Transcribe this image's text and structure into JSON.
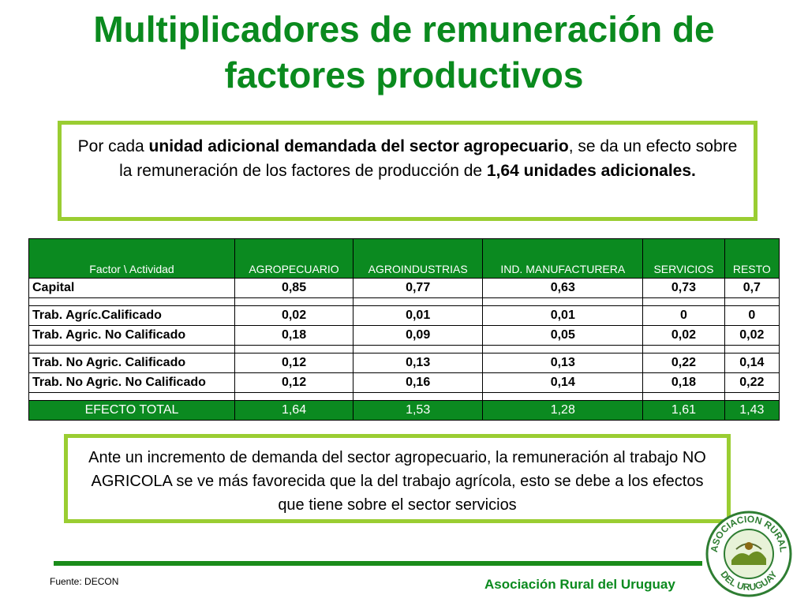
{
  "title_line1": "Multiplicadores de remuneración de",
  "title_line2": "factores productivos",
  "intro": {
    "part1": "Por cada ",
    "bold1": "unidad adicional demandada del sector agropecuario",
    "part2": ", se da un efecto sobre la remuneración de los factores de producción de ",
    "bold2": "1,64 unidades adicionales."
  },
  "table": {
    "headers": [
      "Factor \\ Actividad",
      "AGROPECUARIO",
      "AGROINDUSTRIAS",
      "IND. MANUFACTURERA",
      "SERVICIOS",
      "RESTO"
    ],
    "rows": [
      [
        "Capital",
        "0,85",
        "0,77",
        "0,63",
        "0,73",
        "0,7"
      ],
      [
        "",
        "",
        "",
        "",
        "",
        ""
      ],
      [
        "Trab. Agríc.Calificado",
        "0,02",
        "0,01",
        "0,01",
        "0",
        "0"
      ],
      [
        "Trab. Agric. No Calificado",
        "0,18",
        "0,09",
        "0,05",
        "0,02",
        "0,02"
      ],
      [
        "",
        "",
        "",
        "",
        "",
        ""
      ],
      [
        "Trab. No Agric. Calificado",
        "0,12",
        "0,13",
        "0,13",
        "0,22",
        "0,14"
      ],
      [
        "Trab. No Agric. No Calificado",
        "0,12",
        "0,16",
        "0,14",
        "0,18",
        "0,22"
      ],
      [
        "",
        "",
        "",
        "",
        "",
        ""
      ]
    ],
    "total": [
      "EFECTO TOTAL",
      "1,64",
      "1,53",
      "1,28",
      "1,61",
      "1,43"
    ]
  },
  "conclusion": "Ante un incremento de demanda del sector agropecuario, la remuneración al trabajo NO AGRICOLA se ve más favorecida que la del trabajo agrícola, esto se debe a los efectos que tiene sobre el sector servicios",
  "source": "Fuente: DECON",
  "organization": "Asociación Rural del Uruguay",
  "logo": {
    "icon": "asociacion-rural-seal-icon",
    "ring_text_top": "ASOCIACION RURAL",
    "ring_text_bottom": "DEL URUGUAY"
  },
  "colors": {
    "title_green": "#0a8a1e",
    "table_green": "#0b8a20",
    "box_border": "#9acd32"
  }
}
